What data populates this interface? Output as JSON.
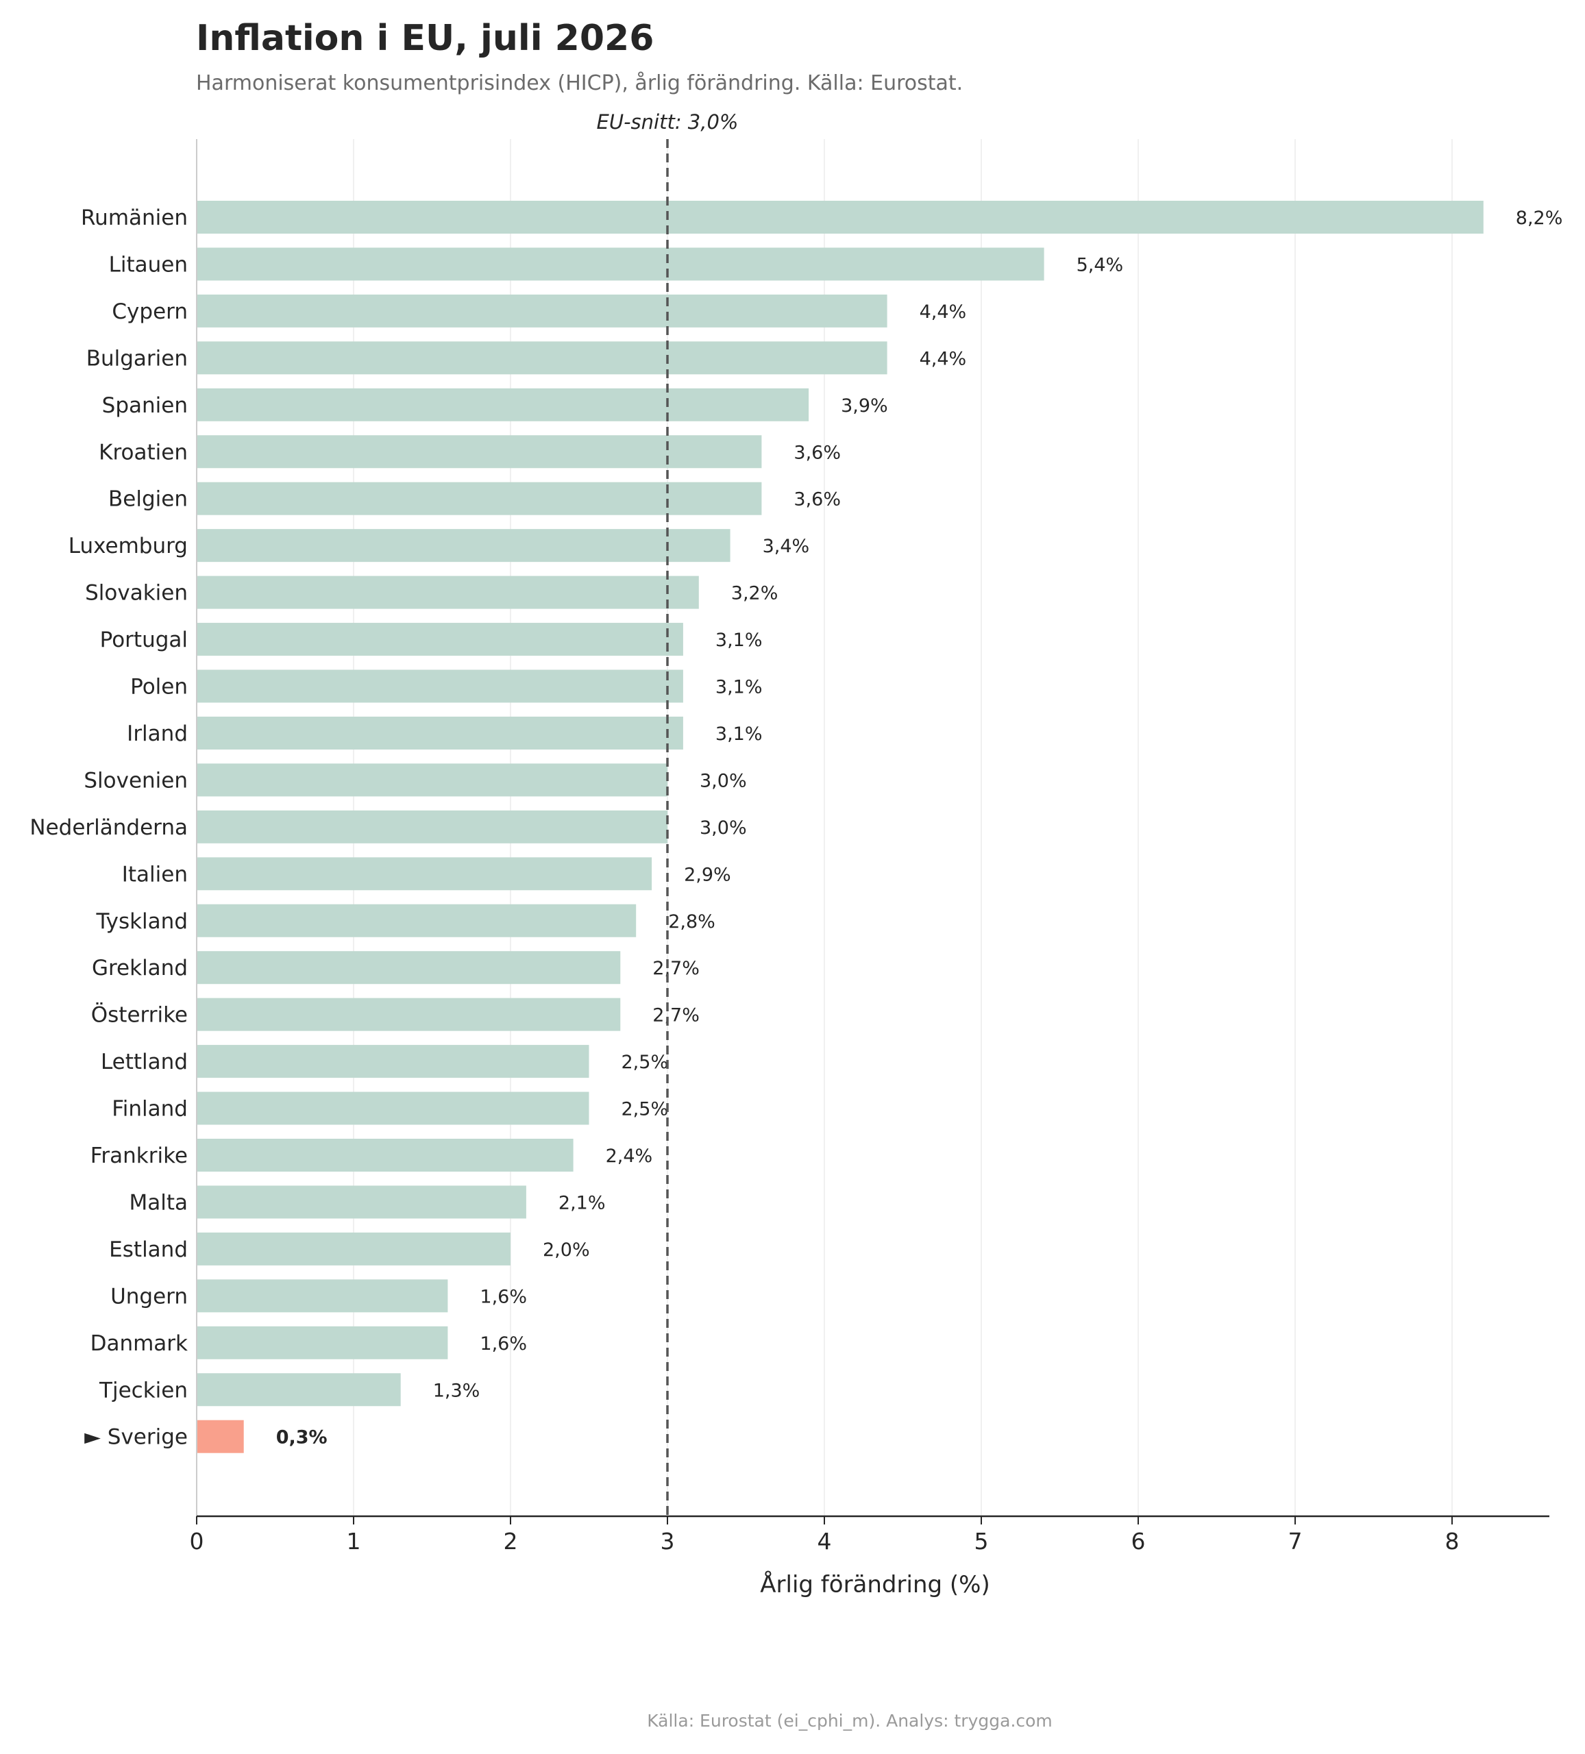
{
  "header": {
    "title": "Inflation i EU, juli 2026",
    "subtitle": "Harmoniserat konsumentprisindex (HICP), årlig förändring. Källa: Eurostat."
  },
  "footer": {
    "text": "Källa: Eurostat (ei_cphi_m). Analys: trygga.com"
  },
  "chart_data": {
    "type": "bar",
    "orientation": "horizontal",
    "title": "Inflation i EU, juli 2026",
    "subtitle": "Harmoniserat konsumentprisindex (HICP), årlig förändring. Källa: Eurostat.",
    "xlabel": "Årlig förändring (%)",
    "ylabel": "",
    "xlim": [
      0,
      8.61
    ],
    "xticks": [
      0,
      1,
      2,
      3,
      4,
      5,
      6,
      7,
      8
    ],
    "grid": "vertical",
    "categories": [
      "Rumänien",
      "Litauen",
      "Cypern",
      "Bulgarien",
      "Spanien",
      "Kroatien",
      "Belgien",
      "Luxemburg",
      "Slovakien",
      "Portugal",
      "Polen",
      "Irland",
      "Slovenien",
      "Nederländerna",
      "Italien",
      "Tyskland",
      "Grekland",
      "Österrike",
      "Lettland",
      "Finland",
      "Frankrike",
      "Malta",
      "Estland",
      "Ungern",
      "Danmark",
      "Tjeckien",
      "► Sverige"
    ],
    "values": [
      8.2,
      5.4,
      4.4,
      4.4,
      3.9,
      3.6,
      3.6,
      3.4,
      3.2,
      3.1,
      3.1,
      3.1,
      3.0,
      3.0,
      2.9,
      2.8,
      2.7,
      2.7,
      2.5,
      2.5,
      2.4,
      2.1,
      2.0,
      1.6,
      1.6,
      1.3,
      0.3
    ],
    "value_labels": [
      "8,2%",
      "5,4%",
      "4,4%",
      "4,4%",
      "3,9%",
      "3,6%",
      "3,6%",
      "3,4%",
      "3,2%",
      "3,1%",
      "3,1%",
      "3,1%",
      "3,0%",
      "3,0%",
      "2,9%",
      "2,8%",
      "2,7%",
      "2,7%",
      "2,5%",
      "2,5%",
      "2,4%",
      "2,1%",
      "2,0%",
      "1,6%",
      "1,6%",
      "1,3%",
      "0,3%"
    ],
    "highlight": {
      "category": "► Sverige",
      "color": "#f9a08c"
    },
    "bar_color": "#bfd9d0",
    "reference_line": {
      "value": 3.0,
      "label": "EU-snitt: 3,0%",
      "style": "dashed"
    }
  }
}
